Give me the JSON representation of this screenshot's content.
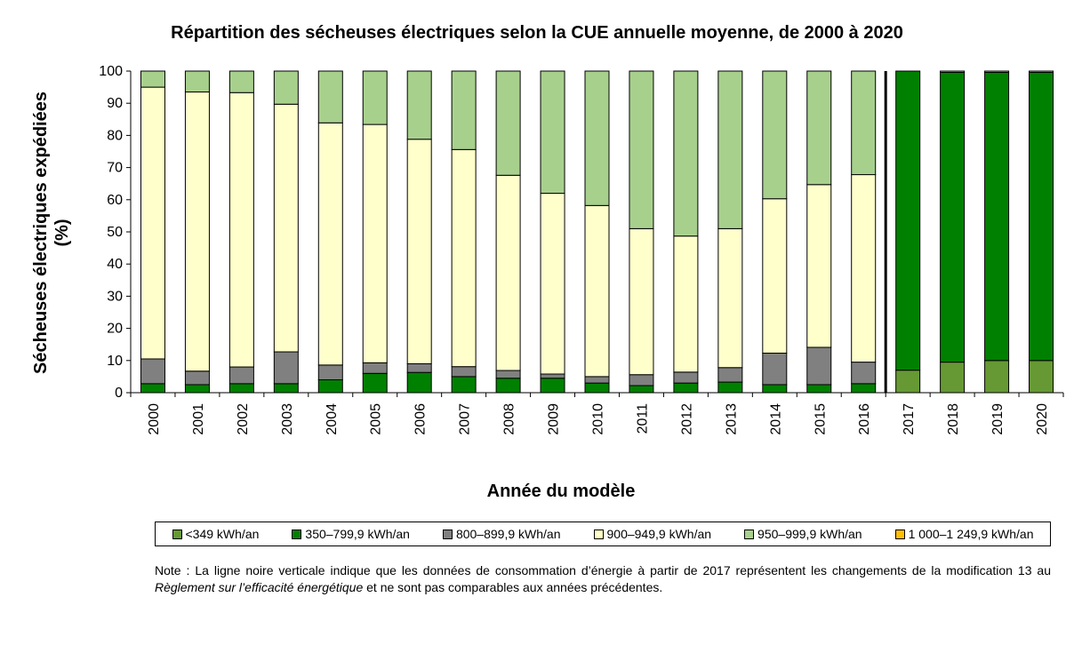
{
  "chart_data": {
    "type": "bar",
    "stacked": true,
    "title": "Répartition des sécheuses électriques selon la CUE annuelle moyenne, de 2000 à 2020",
    "xlabel": "Année du modèle",
    "ylabel_line1": "Sécheuses électriques expédiées",
    "ylabel_line2": "(%)",
    "ylim": [
      0,
      100
    ],
    "yticks": [
      "0",
      "10",
      "20",
      "30",
      "40",
      "50",
      "60",
      "70",
      "80",
      "90",
      "100"
    ],
    "categories": [
      "2000",
      "2001",
      "2002",
      "2003",
      "2004",
      "2005",
      "2006",
      "2007",
      "2008",
      "2009",
      "2010",
      "2011",
      "2012",
      "2013",
      "2014",
      "2015",
      "2016",
      "2017",
      "2018",
      "2019",
      "2020"
    ],
    "divider_before": "2017",
    "legend_position": "bottom",
    "series": [
      {
        "name": "<349 kWh/an",
        "color": "#669933",
        "values": [
          0,
          0,
          0,
          0,
          0,
          0,
          0,
          0,
          0,
          0,
          0,
          0,
          0,
          0,
          0,
          0,
          0,
          7,
          9.5,
          10,
          10
        ]
      },
      {
        "name": "350–799,9 kWh/an",
        "color": "#008000",
        "values": [
          2.8,
          2.5,
          2.8,
          2.8,
          4,
          6,
          6.3,
          5,
          4.5,
          4.5,
          3,
          2.2,
          3,
          3.3,
          2.5,
          2.5,
          2.8,
          93,
          90.1,
          89.6,
          89.6
        ]
      },
      {
        "name": "800–899,9 kWh/an",
        "color": "#808080",
        "values": [
          7.7,
          4.2,
          5.2,
          9.9,
          4.6,
          3.3,
          2.7,
          3.1,
          2.4,
          1.3,
          2,
          3.4,
          3.4,
          4.5,
          9.8,
          11.6,
          6.7,
          0,
          0,
          0,
          0
        ]
      },
      {
        "name": "900–949,9 kWh/an",
        "color": "#FFFFCC",
        "values": [
          84.5,
          86.8,
          85.3,
          77,
          75.3,
          74.1,
          69.8,
          67.5,
          60.7,
          56.2,
          53.2,
          45.4,
          42.3,
          43.2,
          48,
          50.6,
          58.3,
          0,
          0,
          0,
          0
        ]
      },
      {
        "name": "950–999,9 kWh/an",
        "color": "#A8D08D",
        "values": [
          5,
          6.5,
          6.7,
          10.3,
          16.1,
          16.6,
          21.2,
          24.4,
          32.4,
          38,
          41.8,
          49,
          51.3,
          49,
          39.7,
          35.3,
          32.2,
          0,
          0,
          0,
          0
        ]
      },
      {
        "name": "1 000–1 249,9 kWh/an",
        "color": "#FFC000",
        "values": [
          0,
          0,
          0,
          0,
          0,
          0,
          0,
          0,
          0,
          0,
          0,
          0,
          0,
          0,
          0,
          0,
          0,
          0,
          0.4,
          0.4,
          0.4
        ]
      }
    ]
  },
  "note": {
    "part1": "Note : La ligne noire verticale indique que les données de consommation d’énergie à partir de 2017 représentent les changements de la modification 13 au ",
    "italic": "Règlement sur l’efficacité énergétique",
    "part2": " et ne sont pas comparables aux années précédentes."
  }
}
